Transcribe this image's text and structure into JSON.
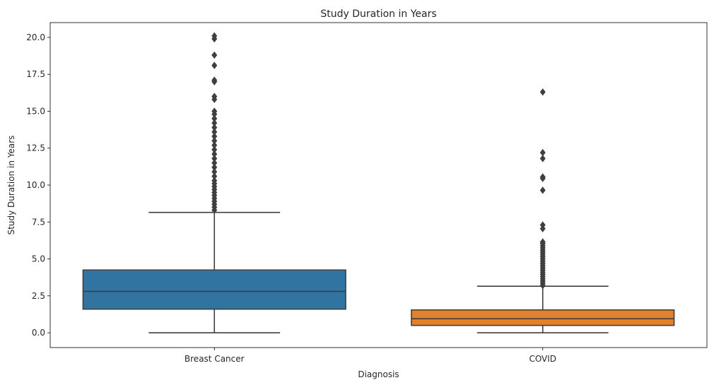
{
  "chart_data": {
    "type": "box",
    "title": "Study Duration in Years",
    "xlabel": "Diagnosis",
    "ylabel": "Study Duration in Years",
    "ylim": [
      -1.0,
      21.0
    ],
    "yticks": [
      0.0,
      2.5,
      5.0,
      7.5,
      10.0,
      12.5,
      15.0,
      17.5,
      20.0
    ],
    "ytick_labels": [
      "0.0",
      "2.5",
      "5.0",
      "7.5",
      "10.0",
      "12.5",
      "15.0",
      "17.5",
      "20.0"
    ],
    "grid": false,
    "categories": [
      "Breast Cancer",
      "COVID"
    ],
    "boxes": [
      {
        "category": "Breast Cancer",
        "color": "#3274a1",
        "whisker_low": 0.0,
        "q1": 1.6,
        "median": 2.8,
        "q3": 4.25,
        "whisker_high": 8.15,
        "outliers": [
          8.3,
          8.5,
          8.7,
          8.9,
          9.1,
          9.3,
          9.5,
          9.7,
          9.9,
          10.1,
          10.3,
          10.6,
          10.9,
          11.2,
          11.5,
          11.8,
          12.1,
          12.4,
          12.7,
          13.0,
          13.3,
          13.6,
          13.9,
          14.2,
          14.5,
          14.8,
          15.0,
          15.8,
          16.0,
          17.0,
          17.1,
          18.1,
          18.8,
          19.9,
          20.1
        ]
      },
      {
        "category": "COVID",
        "color": "#e1812c",
        "whisker_low": 0.0,
        "q1": 0.5,
        "median": 0.95,
        "q3": 1.55,
        "whisker_high": 3.15,
        "outliers": [
          3.2,
          3.35,
          3.5,
          3.65,
          3.8,
          3.95,
          4.1,
          4.25,
          4.4,
          4.55,
          4.7,
          4.85,
          5.0,
          5.15,
          5.3,
          5.45,
          5.6,
          5.75,
          5.9,
          6.05,
          6.15,
          7.05,
          7.3,
          9.65,
          10.45,
          10.55,
          11.8,
          12.2,
          16.3
        ]
      }
    ]
  },
  "colors": {
    "axis": "#000000",
    "box_edge": "#3f3f3f",
    "text": "#262626"
  }
}
